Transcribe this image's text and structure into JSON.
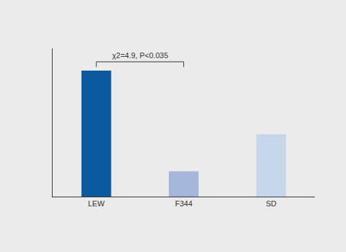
{
  "chart_data": {
    "type": "bar",
    "categories": [
      "LEW",
      "F344",
      "SD"
    ],
    "values": [
      85,
      17,
      42
    ],
    "colors": [
      "#0b5aa0",
      "#a4b6d9",
      "#c6d6eb"
    ],
    "ylim": [
      0,
      100
    ],
    "tick_labels": "x",
    "grid": false,
    "annotations": [
      {
        "text": "χ2=4.9, P<0.035",
        "from": "LEW",
        "to": "F344"
      }
    ]
  }
}
